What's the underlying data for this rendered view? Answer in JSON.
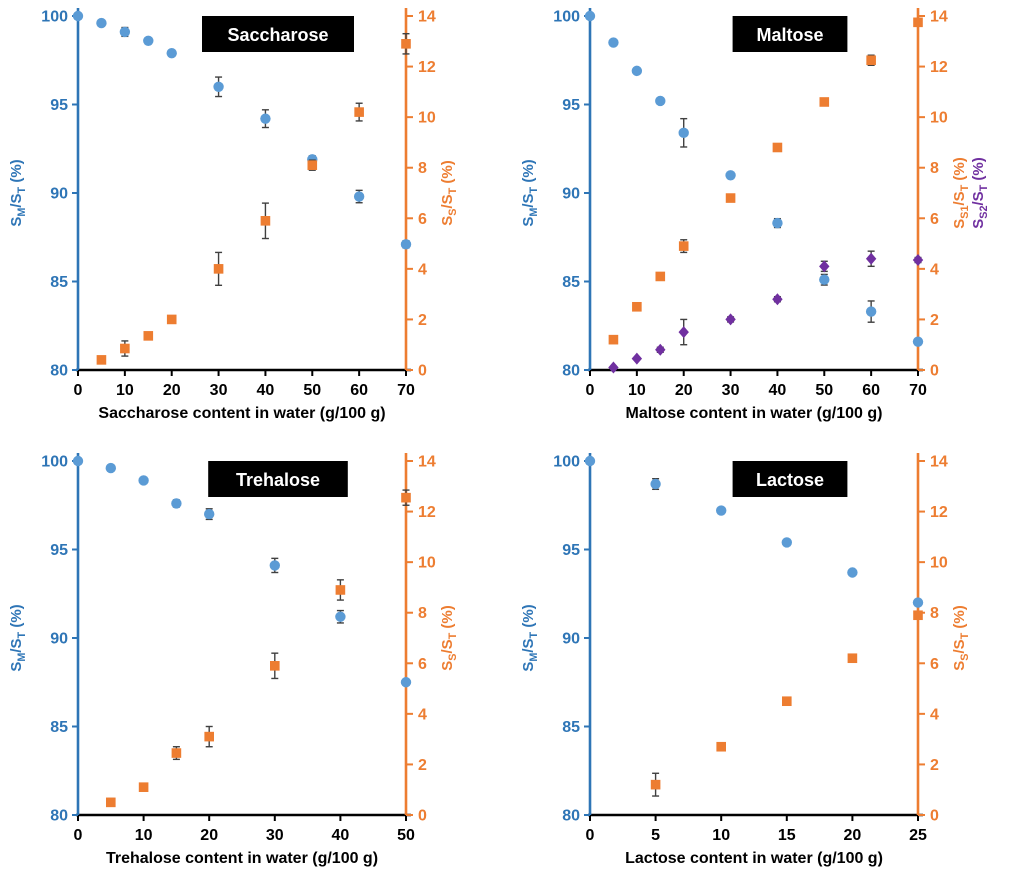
{
  "page": {
    "background": "#FFFFFF"
  },
  "colors": {
    "blue_axis": "#2E75B6",
    "blue_marker": "#5B9BD5",
    "orange": "#ED7D31",
    "purple": "#7030A0",
    "error_bar": "#404040",
    "x_axis": "#000000",
    "title_bg": "#000000",
    "title_fg": "#FFFFFF"
  },
  "chart_data": [
    {
      "id": "saccharose",
      "type": "scatter",
      "title": "Saccharose",
      "xlabel": "Saccharose content in water (g/100 g)",
      "xlim": [
        0,
        70
      ],
      "xticks": [
        0,
        10,
        20,
        30,
        40,
        50,
        60,
        70
      ],
      "left_axis": {
        "label": "S_{M}/S_{T} (%)",
        "lim": [
          80,
          100
        ],
        "ticks": [
          80,
          85,
          90,
          95,
          100
        ]
      },
      "right_axis": {
        "labels": [
          "S_{S}/S_{T} (%)"
        ],
        "label_colors": [
          "#ED7D31"
        ],
        "lim": [
          0,
          14
        ],
        "ticks": [
          0,
          2,
          4,
          6,
          8,
          10,
          12,
          14
        ]
      },
      "grid": false,
      "series": [
        {
          "id": "sm-st",
          "label": "S_{M}/S_{T} (%)",
          "axis": "left",
          "marker": "circle",
          "color": "#5B9BD5",
          "x": [
            0,
            5,
            10,
            15,
            20,
            30,
            40,
            50,
            60,
            70
          ],
          "y": [
            100,
            99.6,
            99.1,
            98.6,
            97.9,
            96.0,
            94.2,
            91.9,
            89.8,
            87.1
          ],
          "err": [
            0,
            0,
            0.25,
            0,
            0,
            0.55,
            0.5,
            0.2,
            0.35,
            0.2
          ]
        },
        {
          "id": "ss-st",
          "label": "S_{S}/S_{T} (%)",
          "axis": "right",
          "marker": "square",
          "color": "#ED7D31",
          "x": [
            5,
            10,
            15,
            20,
            30,
            40,
            50,
            60,
            70
          ],
          "y": [
            0.4,
            0.85,
            1.35,
            2.0,
            4.0,
            5.9,
            8.1,
            10.2,
            12.9
          ],
          "err": [
            0.1,
            0.3,
            0.1,
            0.1,
            0.65,
            0.7,
            0.2,
            0.35,
            0.4
          ]
        }
      ]
    },
    {
      "id": "maltose",
      "type": "scatter",
      "title": "Maltose",
      "xlabel": "Maltose content in water (g/100 g)",
      "xlim": [
        0,
        70
      ],
      "xticks": [
        0,
        10,
        20,
        30,
        40,
        50,
        60,
        70
      ],
      "left_axis": {
        "label": "S_{M}/S_{T} (%)",
        "lim": [
          80,
          100
        ],
        "ticks": [
          80,
          85,
          90,
          95,
          100
        ]
      },
      "right_axis": {
        "labels": [
          "S_{S1}/S_{T} (%)",
          "S_{S2}/S_{T} (%)"
        ],
        "label_colors": [
          "#ED7D31",
          "#7030A0"
        ],
        "lim": [
          0,
          14
        ],
        "ticks": [
          0,
          2,
          4,
          6,
          8,
          10,
          12,
          14
        ]
      },
      "grid": false,
      "series": [
        {
          "id": "sm-st",
          "label": "S_{M}/S_{T} (%)",
          "axis": "left",
          "marker": "circle",
          "color": "#5B9BD5",
          "x": [
            0,
            5,
            10,
            15,
            20,
            30,
            40,
            50,
            60,
            70
          ],
          "y": [
            100,
            98.5,
            96.9,
            95.2,
            93.4,
            91.0,
            88.3,
            85.1,
            83.3,
            81.6
          ],
          "err": [
            0,
            0,
            0,
            0,
            0.8,
            0.15,
            0.25,
            0.3,
            0.6,
            0
          ]
        },
        {
          "id": "ss1-st",
          "label": "S_{S1}/S_{T} (%)",
          "axis": "right",
          "marker": "square",
          "color": "#ED7D31",
          "x": [
            5,
            10,
            15,
            20,
            30,
            40,
            50,
            60,
            70
          ],
          "y": [
            1.2,
            2.5,
            3.7,
            4.9,
            6.8,
            8.8,
            10.6,
            12.25,
            13.75
          ],
          "err": [
            0,
            0,
            0,
            0.25,
            0,
            0,
            0,
            0.2,
            0.15
          ]
        },
        {
          "id": "ss2-st",
          "label": "S_{S2}/S_{T} (%)",
          "axis": "right",
          "marker": "diamond",
          "color": "#7030A0",
          "x": [
            5,
            10,
            15,
            20,
            30,
            40,
            50,
            60,
            70
          ],
          "y": [
            0.1,
            0.45,
            0.8,
            1.5,
            2.0,
            2.8,
            4.1,
            4.4,
            4.35
          ],
          "err": [
            0,
            0,
            0.1,
            0.5,
            0.1,
            0.1,
            0.2,
            0.3,
            0.1
          ]
        }
      ]
    },
    {
      "id": "trehalose",
      "type": "scatter",
      "title": "Trehalose",
      "xlabel": "Trehalose content in water (g/100 g)",
      "xlim": [
        0,
        50
      ],
      "xticks": [
        0,
        10,
        20,
        30,
        40,
        50
      ],
      "left_axis": {
        "label": "S_{M}/S_{T} (%)",
        "lim": [
          80,
          100
        ],
        "ticks": [
          80,
          85,
          90,
          95,
          100
        ]
      },
      "right_axis": {
        "labels": [
          "S_{S}/S_{T} (%)"
        ],
        "label_colors": [
          "#ED7D31"
        ],
        "lim": [
          0,
          14
        ],
        "ticks": [
          0,
          2,
          4,
          6,
          8,
          10,
          12,
          14
        ]
      },
      "grid": false,
      "series": [
        {
          "id": "sm-st",
          "label": "S_{M}/S_{T} (%)",
          "axis": "left",
          "marker": "circle",
          "color": "#5B9BD5",
          "x": [
            0,
            5,
            10,
            15,
            20,
            30,
            40,
            50
          ],
          "y": [
            100,
            99.6,
            98.9,
            97.6,
            97.0,
            94.1,
            91.2,
            87.5
          ],
          "err": [
            0,
            0,
            0,
            0.2,
            0.3,
            0.4,
            0.35,
            0.15
          ]
        },
        {
          "id": "ss-st",
          "label": "S_{S}/S_{T} (%)",
          "axis": "right",
          "marker": "square",
          "color": "#ED7D31",
          "x": [
            5,
            10,
            15,
            20,
            30,
            40,
            50
          ],
          "y": [
            0.5,
            1.1,
            2.45,
            3.1,
            5.9,
            8.9,
            12.55
          ],
          "err": [
            0.15,
            0,
            0.25,
            0.4,
            0.5,
            0.4,
            0.3
          ]
        }
      ]
    },
    {
      "id": "lactose",
      "type": "scatter",
      "title": "Lactose",
      "xlabel": "Lactose content in water (g/100 g)",
      "xlim": [
        0,
        25
      ],
      "xticks": [
        0,
        5,
        10,
        15,
        20,
        25
      ],
      "left_axis": {
        "label": "S_{M}/S_{T} (%)",
        "lim": [
          80,
          100
        ],
        "ticks": [
          80,
          85,
          90,
          95,
          100
        ]
      },
      "right_axis": {
        "labels": [
          "S_{S}/S_{T} (%)"
        ],
        "label_colors": [
          "#ED7D31"
        ],
        "lim": [
          0,
          14
        ],
        "ticks": [
          0,
          2,
          4,
          6,
          8,
          10,
          12,
          14
        ]
      },
      "grid": false,
      "series": [
        {
          "id": "sm-st",
          "label": "S_{M}/S_{T} (%)",
          "axis": "left",
          "marker": "circle",
          "color": "#5B9BD5",
          "x": [
            0,
            5,
            10,
            15,
            20,
            25
          ],
          "y": [
            100,
            98.7,
            97.2,
            95.4,
            93.7,
            92.0
          ],
          "err": [
            0,
            0.3,
            0,
            0,
            0,
            0
          ]
        },
        {
          "id": "ss-st",
          "label": "S_{S}/S_{T} (%)",
          "axis": "right",
          "marker": "square",
          "color": "#ED7D31",
          "x": [
            5,
            10,
            15,
            20,
            25
          ],
          "y": [
            1.2,
            2.7,
            4.5,
            6.2,
            7.9
          ],
          "err": [
            0.45,
            0,
            0,
            0,
            0
          ]
        }
      ]
    }
  ]
}
